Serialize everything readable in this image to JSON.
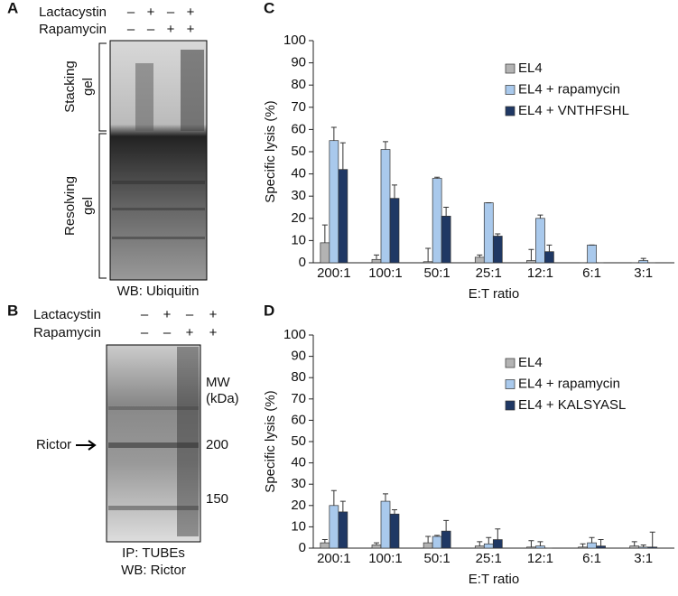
{
  "panels": [
    {
      "label": "A",
      "rows": [
        {
          "name": "Lactacystin",
          "signs": [
            "–",
            "+",
            "–",
            "+"
          ]
        },
        {
          "name": "Rapamycin",
          "signs": [
            "–",
            "–",
            "+",
            "+"
          ]
        }
      ],
      "regions": [
        [
          "Stacking",
          "gel"
        ],
        [
          "Resolving",
          "gel"
        ]
      ],
      "caption": [
        "WB: Ubiquitin"
      ]
    },
    {
      "label": "B",
      "rows": [
        {
          "name": "Lactacystin",
          "signs": [
            "–",
            "+",
            "–",
            "+"
          ]
        },
        {
          "name": "Rapamycin",
          "signs": [
            "–",
            "–",
            "+",
            "+"
          ]
        }
      ],
      "mw_label": [
        "MW",
        "(kDa)"
      ],
      "markers": [
        200,
        150
      ],
      "band_label": "Rictor",
      "caption": [
        "IP: TUBEs",
        "WB: Rictor"
      ]
    }
  ],
  "chart_data": [
    {
      "type": "bar",
      "panel": "C",
      "y_label": "Specific lysis (%)",
      "x_label": "E:T ratio",
      "categories": [
        "200:1",
        "100:1",
        "50:1",
        "25:1",
        "12:1",
        "6:1",
        "3:1"
      ],
      "ylim": [
        0,
        100
      ],
      "yticks": [
        0,
        10,
        20,
        30,
        40,
        50,
        60,
        70,
        80,
        90,
        100
      ],
      "legend": "upper right",
      "series": [
        {
          "name": "EL4",
          "color": "#b3b3b3",
          "values": [
            9,
            1.5,
            0.5,
            2.5,
            1,
            0,
            0
          ],
          "errors": [
            8,
            2,
            6,
            1,
            5,
            0,
            0
          ]
        },
        {
          "name": "EL4 + rapamycin",
          "color": "#a9c9ec",
          "values": [
            55,
            51,
            38,
            27,
            20,
            8,
            1
          ],
          "errors": [
            6,
            3.5,
            0.5,
            0,
            1.5,
            0,
            1
          ]
        },
        {
          "name": "EL4 + VNTHFSHL",
          "color": "#1f3864",
          "values": [
            42,
            29,
            21,
            12,
            5,
            0,
            0
          ],
          "errors": [
            12,
            6,
            4,
            1,
            3,
            0,
            0
          ]
        }
      ]
    },
    {
      "type": "bar",
      "panel": "D",
      "y_label": "Specific lysis (%)",
      "x_label": "E:T ratio",
      "categories": [
        "200:1",
        "100:1",
        "50:1",
        "25:1",
        "12:1",
        "6:1",
        "3:1"
      ],
      "ylim": [
        0,
        100
      ],
      "yticks": [
        0,
        10,
        20,
        30,
        40,
        50,
        60,
        70,
        80,
        90,
        100
      ],
      "legend": "upper right",
      "series": [
        {
          "name": "EL4",
          "color": "#b3b3b3",
          "values": [
            2.5,
            1.5,
            2.5,
            1,
            0.5,
            0.5,
            1
          ],
          "errors": [
            1.5,
            1,
            3,
            2,
            3,
            1.5,
            2
          ]
        },
        {
          "name": "EL4 + rapamycin",
          "color": "#a9c9ec",
          "values": [
            20,
            22,
            5.5,
            2,
            1,
            2.5,
            0.5
          ],
          "errors": [
            7,
            3.5,
            0.5,
            3,
            2,
            2.5,
            1
          ]
        },
        {
          "name": "EL4 + KALSYASL",
          "color": "#1f3864",
          "values": [
            17,
            16,
            8,
            4,
            0,
            1,
            0.5
          ],
          "errors": [
            5,
            2,
            5,
            5,
            0,
            3,
            7
          ]
        }
      ]
    }
  ]
}
